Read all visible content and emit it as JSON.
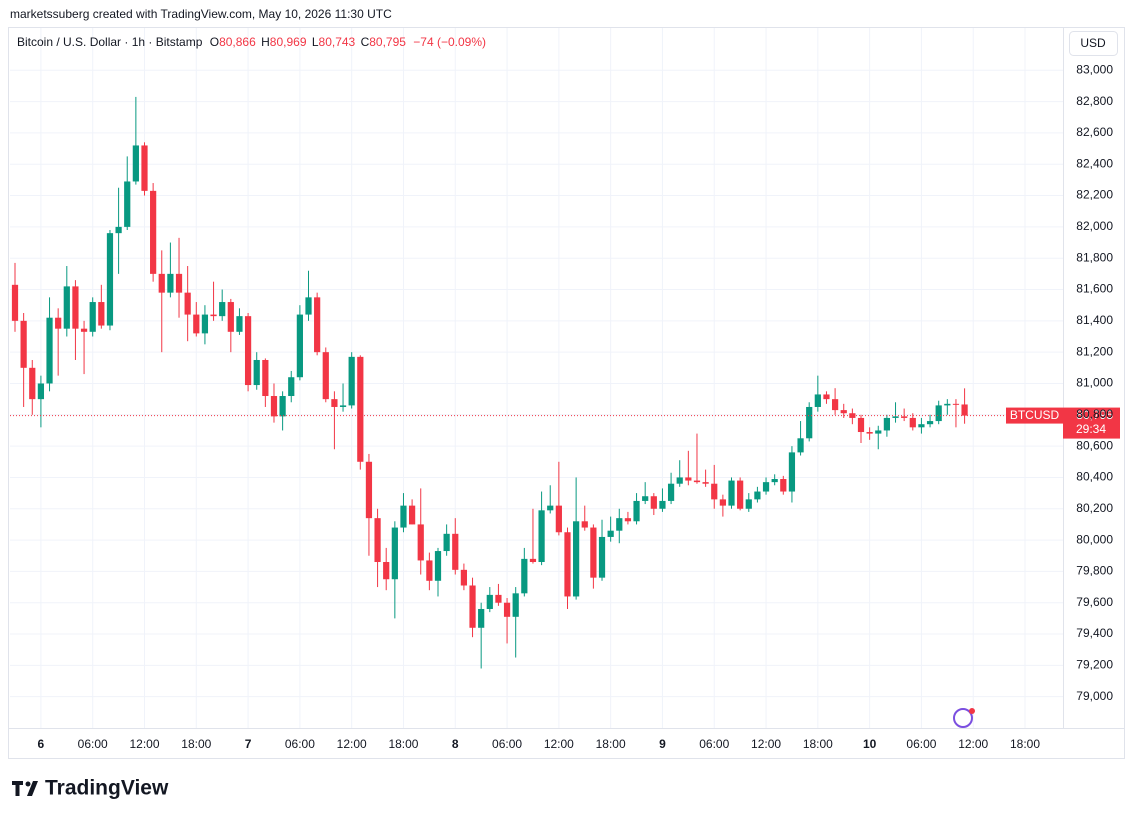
{
  "header": "marketssuberg created with TradingView.com, May 10, 2026 11:30 UTC",
  "legend": {
    "symbol": "Bitcoin / U.S. Dollar · 1h · Bitstamp",
    "open_label": "O",
    "open": "80,866",
    "high_label": "H",
    "high": "80,969",
    "low_label": "L",
    "low": "80,743",
    "close_label": "C",
    "close": "80,795",
    "change": "−74 (−0.09%)"
  },
  "brand": "TradingView",
  "chart_data": {
    "type": "candlestick",
    "currency": "USD",
    "symbol_tag": "BTCUSD",
    "up_color": "#089981",
    "down_color": "#f23645",
    "grid": true,
    "last_price": 80795,
    "last_price_label": "80,795",
    "countdown": "29:34",
    "ylim": [
      78800,
      83270
    ],
    "yticks": [
      {
        "value": 79000,
        "label": "79,000"
      },
      {
        "value": 79200,
        "label": "79,200"
      },
      {
        "value": 79400,
        "label": "79,400"
      },
      {
        "value": 79600,
        "label": "79,600"
      },
      {
        "value": 79800,
        "label": "79,800"
      },
      {
        "value": 80000,
        "label": "80,000"
      },
      {
        "value": 80200,
        "label": "80,200"
      },
      {
        "value": 80400,
        "label": "80,400"
      },
      {
        "value": 80600,
        "label": "80,600"
      },
      {
        "value": 80800,
        "label": "80,800"
      },
      {
        "value": 81000,
        "label": "81,000"
      },
      {
        "value": 81200,
        "label": "81,200"
      },
      {
        "value": 81400,
        "label": "81,400"
      },
      {
        "value": 81600,
        "label": "81,600"
      },
      {
        "value": 81800,
        "label": "81,800"
      },
      {
        "value": 82000,
        "label": "82,000"
      },
      {
        "value": 82200,
        "label": "82,200"
      },
      {
        "value": 82400,
        "label": "82,400"
      },
      {
        "value": 82600,
        "label": "82,600"
      },
      {
        "value": 82800,
        "label": "82,800"
      },
      {
        "value": 83000,
        "label": "83,000"
      }
    ],
    "xlim": [
      -0.58,
      121.4
    ],
    "xticks": [
      {
        "value": 3,
        "label": "6"
      },
      {
        "value": 9,
        "label": "06:00"
      },
      {
        "value": 15,
        "label": "12:00"
      },
      {
        "value": 21,
        "label": "18:00"
      },
      {
        "value": 27,
        "label": "7"
      },
      {
        "value": 33,
        "label": "06:00"
      },
      {
        "value": 39,
        "label": "12:00"
      },
      {
        "value": 45,
        "label": "18:00"
      },
      {
        "value": 51,
        "label": "8"
      },
      {
        "value": 57,
        "label": "06:00"
      },
      {
        "value": 63,
        "label": "12:00"
      },
      {
        "value": 69,
        "label": "18:00"
      },
      {
        "value": 75,
        "label": "9"
      },
      {
        "value": 81,
        "label": "06:00"
      },
      {
        "value": 87,
        "label": "12:00"
      },
      {
        "value": 93,
        "label": "18:00"
      },
      {
        "value": 99,
        "label": "10"
      },
      {
        "value": 105,
        "label": "06:00"
      },
      {
        "value": 111,
        "label": "12:00"
      },
      {
        "value": 117,
        "label": "18:00"
      }
    ],
    "ohlc": [
      [
        81630,
        81770,
        81330,
        81400
      ],
      [
        81400,
        81450,
        80850,
        81100
      ],
      [
        81100,
        81150,
        80800,
        80900
      ],
      [
        80900,
        81050,
        80720,
        81000
      ],
      [
        81000,
        81550,
        80950,
        81420
      ],
      [
        81420,
        81480,
        81050,
        81350
      ],
      [
        81350,
        81750,
        81300,
        81620
      ],
      [
        81620,
        81660,
        81150,
        81350
      ],
      [
        81350,
        81400,
        81060,
        81330
      ],
      [
        81330,
        81550,
        81300,
        81520
      ],
      [
        81520,
        81630,
        81350,
        81370
      ],
      [
        81370,
        81980,
        81340,
        81960
      ],
      [
        81960,
        82250,
        81700,
        82000
      ],
      [
        82000,
        82450,
        81980,
        82290
      ],
      [
        82290,
        82830,
        82270,
        82520
      ],
      [
        82520,
        82540,
        82200,
        82230
      ],
      [
        82230,
        82280,
        81650,
        81700
      ],
      [
        81700,
        81850,
        81200,
        81580
      ],
      [
        81580,
        81900,
        81550,
        81700
      ],
      [
        81700,
        81930,
        81420,
        81580
      ],
      [
        81580,
        81750,
        81270,
        81440
      ],
      [
        81440,
        81520,
        81300,
        81320
      ],
      [
        81320,
        81500,
        81250,
        81440
      ],
      [
        81440,
        81650,
        81400,
        81430
      ],
      [
        81430,
        81600,
        81400,
        81520
      ],
      [
        81520,
        81540,
        81200,
        81330
      ],
      [
        81330,
        81480,
        81310,
        81430
      ],
      [
        81430,
        81450,
        80950,
        80990
      ],
      [
        80990,
        81200,
        80960,
        81150
      ],
      [
        81150,
        81160,
        80850,
        80920
      ],
      [
        80920,
        81000,
        80750,
        80790
      ],
      [
        80790,
        80950,
        80700,
        80920
      ],
      [
        80920,
        81080,
        80880,
        81040
      ],
      [
        81040,
        81500,
        81020,
        81440
      ],
      [
        81440,
        81720,
        81400,
        81550
      ],
      [
        81550,
        81580,
        81180,
        81200
      ],
      [
        81200,
        81230,
        80880,
        80900
      ],
      [
        80900,
        80950,
        80580,
        80850
      ],
      [
        80850,
        81000,
        80820,
        80860
      ],
      [
        80860,
        81200,
        80840,
        81170
      ],
      [
        81170,
        81180,
        80450,
        80500
      ],
      [
        80500,
        80550,
        79900,
        80140
      ],
      [
        80140,
        80200,
        79700,
        79860
      ],
      [
        79860,
        79950,
        79680,
        79750
      ],
      [
        79750,
        80120,
        79500,
        80080
      ],
      [
        80080,
        80300,
        80050,
        80220
      ],
      [
        80220,
        80260,
        80100,
        80100
      ],
      [
        80100,
        80330,
        79780,
        79870
      ],
      [
        79870,
        79920,
        79680,
        79740
      ],
      [
        79740,
        79950,
        79640,
        79930
      ],
      [
        79930,
        80100,
        79900,
        80040
      ],
      [
        80040,
        80140,
        79780,
        79810
      ],
      [
        79810,
        79850,
        79680,
        79710
      ],
      [
        79710,
        79760,
        79380,
        79440
      ],
      [
        79440,
        79600,
        79180,
        79560
      ],
      [
        79560,
        79700,
        79540,
        79650
      ],
      [
        79650,
        79720,
        79580,
        79600
      ],
      [
        79600,
        79630,
        79340,
        79510
      ],
      [
        79510,
        79700,
        79250,
        79660
      ],
      [
        79660,
        79950,
        79640,
        79880
      ],
      [
        79880,
        80200,
        79850,
        79860
      ],
      [
        79860,
        80310,
        79840,
        80190
      ],
      [
        80190,
        80350,
        80170,
        80220
      ],
      [
        80220,
        80500,
        80030,
        80050
      ],
      [
        80050,
        80080,
        79560,
        79640
      ],
      [
        79640,
        80400,
        79620,
        80120
      ],
      [
        80120,
        80220,
        80060,
        80080
      ],
      [
        80080,
        80100,
        79690,
        79760
      ],
      [
        79760,
        80130,
        79740,
        80020
      ],
      [
        80020,
        80150,
        79990,
        80060
      ],
      [
        80060,
        80200,
        79980,
        80140
      ],
      [
        80140,
        80180,
        80100,
        80120
      ],
      [
        80120,
        80300,
        80100,
        80250
      ],
      [
        80250,
        80370,
        80230,
        80280
      ],
      [
        80280,
        80300,
        80160,
        80200
      ],
      [
        80200,
        80330,
        80180,
        80250
      ],
      [
        80250,
        80430,
        80230,
        80360
      ],
      [
        80360,
        80510,
        80340,
        80400
      ],
      [
        80400,
        80570,
        80350,
        80380
      ],
      [
        80380,
        80680,
        80360,
        80370
      ],
      [
        80370,
        80450,
        80340,
        80360
      ],
      [
        80360,
        80480,
        80200,
        80260
      ],
      [
        80260,
        80290,
        80150,
        80220
      ],
      [
        80220,
        80400,
        80200,
        80380
      ],
      [
        80380,
        80400,
        80190,
        80200
      ],
      [
        80200,
        80300,
        80180,
        80260
      ],
      [
        80260,
        80340,
        80240,
        80310
      ],
      [
        80310,
        80400,
        80290,
        80370
      ],
      [
        80370,
        80420,
        80350,
        80390
      ],
      [
        80390,
        80410,
        80290,
        80310
      ],
      [
        80310,
        80600,
        80240,
        80560
      ],
      [
        80560,
        80760,
        80540,
        80650
      ],
      [
        80650,
        80880,
        80630,
        80850
      ],
      [
        80850,
        81050,
        80820,
        80930
      ],
      [
        80930,
        80950,
        80870,
        80900
      ],
      [
        80900,
        80970,
        80800,
        80830
      ],
      [
        80830,
        80870,
        80780,
        80810
      ],
      [
        80810,
        80840,
        80740,
        80780
      ],
      [
        80780,
        80800,
        80620,
        80690
      ],
      [
        80690,
        80720,
        80640,
        80680
      ],
      [
        80680,
        80730,
        80580,
        80700
      ],
      [
        80700,
        80800,
        80660,
        80780
      ],
      [
        80780,
        80880,
        80750,
        80790
      ],
      [
        80790,
        80840,
        80760,
        80780
      ],
      [
        80780,
        80810,
        80700,
        80720
      ],
      [
        80720,
        80780,
        80680,
        80740
      ],
      [
        80740,
        80800,
        80720,
        80760
      ],
      [
        80760,
        80890,
        80740,
        80860
      ],
      [
        80860,
        80900,
        80800,
        80870
      ],
      [
        80870,
        80900,
        80720,
        80866
      ],
      [
        80866,
        80969,
        80743,
        80795
      ]
    ]
  }
}
